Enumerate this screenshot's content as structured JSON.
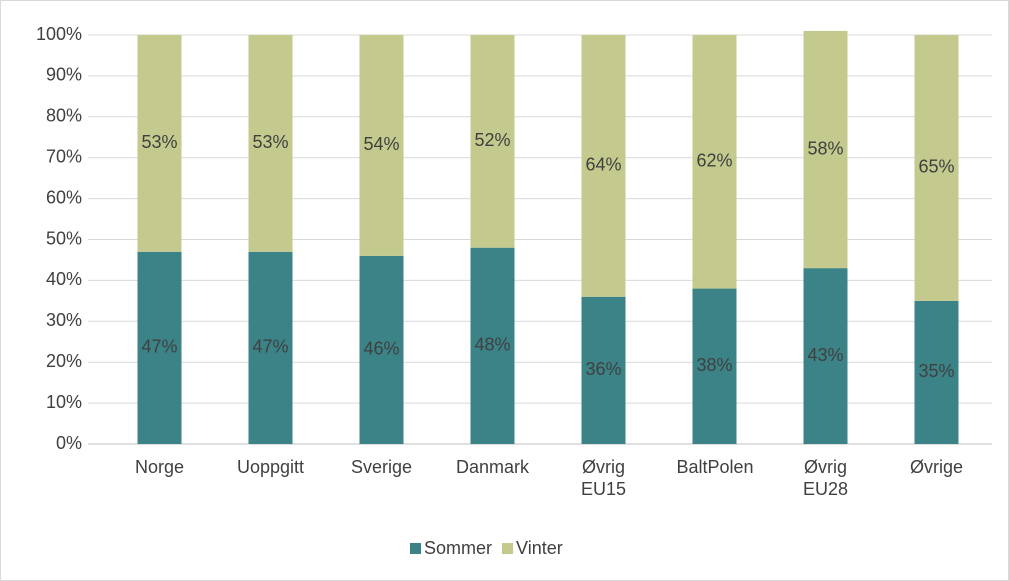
{
  "chart_data": {
    "type": "stacked_bar",
    "categories": [
      "Norge",
      "Uoppgitt",
      "Sverige",
      "Danmark",
      "Øvrig EU15",
      "BaltPolen",
      "Øvrig EU28",
      "Øvrige"
    ],
    "series": [
      {
        "name": "Sommer",
        "color": "#3b8387",
        "values": [
          47,
          47,
          46,
          48,
          36,
          38,
          43,
          35
        ],
        "value_labels": [
          "47%",
          "47%",
          "46%",
          "48%",
          "36%",
          "38%",
          "43%",
          "35%"
        ]
      },
      {
        "name": "Vinter",
        "color": "#c4ca8d",
        "values": [
          53,
          53,
          54,
          52,
          64,
          62,
          58,
          65
        ],
        "value_labels": [
          "53%",
          "53%",
          "54%",
          "52%",
          "64%",
          "62%",
          "58%",
          "65%"
        ]
      }
    ],
    "ylim": [
      0,
      100
    ],
    "yticks": [
      {
        "value": 0,
        "label": "0%"
      },
      {
        "value": 10,
        "label": "10%"
      },
      {
        "value": 20,
        "label": "20%"
      },
      {
        "value": 30,
        "label": "30%"
      },
      {
        "value": 40,
        "label": "40%"
      },
      {
        "value": 50,
        "label": "50%"
      },
      {
        "value": 60,
        "label": "60%"
      },
      {
        "value": 70,
        "label": "70%"
      },
      {
        "value": 80,
        "label": "80%"
      },
      {
        "value": 90,
        "label": "90%"
      },
      {
        "value": 100,
        "label": "100%"
      }
    ],
    "grid": true,
    "legend": "bottom"
  }
}
